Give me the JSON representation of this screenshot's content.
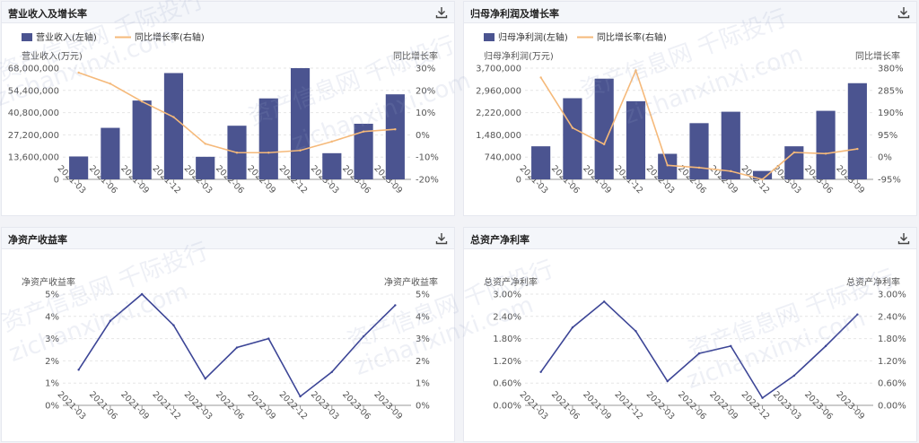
{
  "panels": [
    {
      "title": "营业收入及增长率",
      "chart_data": {
        "type": "bar",
        "categories": [
          "2021-03",
          "2021-06",
          "2021-09",
          "2021-12",
          "2022-03",
          "2022-06",
          "2022-09",
          "2022-12",
          "2023-03",
          "2023-06",
          "2023-09"
        ],
        "series": [
          {
            "name": "营业收入(左轴)",
            "type": "bar",
            "axis": "left",
            "values": [
              14000000,
              31500000,
              48200000,
              65000000,
              13800000,
              32800000,
              49500000,
              68000000,
              16000000,
              34000000,
              52000000
            ]
          },
          {
            "name": "同比增长率(右轴)",
            "type": "line",
            "axis": "right",
            "values": [
              28,
              23,
              15,
              8,
              -4,
              -8,
              -8,
              -7,
              -3,
              1.5,
              2.5
            ]
          }
        ],
        "left_axis": {
          "label": "营业收入(万元)",
          "ticks": [
            "68,000,000",
            "54,400,000",
            "40,800,000",
            "27,200,000",
            "13,600,000",
            "0"
          ],
          "ylim": [
            0,
            68000000
          ]
        },
        "right_axis": {
          "label": "同比增长率",
          "ticks": [
            "30%",
            "20%",
            "10%",
            "0%",
            "-10%",
            "-20%"
          ],
          "ylim": [
            -20,
            30
          ]
        },
        "legend": "top-left"
      }
    },
    {
      "title": "归母净利润及增长率",
      "chart_data": {
        "type": "bar",
        "categories": [
          "2021-03",
          "2021-06",
          "2021-09",
          "2021-12",
          "2022-03",
          "2022-06",
          "2022-09",
          "2022-12",
          "2023-03",
          "2023-06",
          "2023-09"
        ],
        "series": [
          {
            "name": "归母净利润(左轴)",
            "type": "bar",
            "axis": "left",
            "values": [
              1100000,
              2700000,
              3350000,
              2600000,
              850000,
              1870000,
              2250000,
              280000,
              1100000,
              2280000,
              3200000
            ]
          },
          {
            "name": "同比增长率(右轴)",
            "type": "line",
            "axis": "right",
            "values": [
              340,
              125,
              55,
              370,
              -35,
              -45,
              -60,
              -95,
              20,
              15,
              35
            ]
          }
        ],
        "left_axis": {
          "label": "归母净利润(万元)",
          "ticks": [
            "3,700,000",
            "2,960,000",
            "2,220,000",
            "1,480,000",
            "740,000",
            "0"
          ],
          "ylim": [
            0,
            3700000
          ]
        },
        "right_axis": {
          "label": "同比增长率",
          "ticks": [
            "380%",
            "285%",
            "190%",
            "95%",
            "0%",
            "-95%"
          ],
          "ylim": [
            -95,
            380
          ]
        },
        "legend": "top-left"
      }
    },
    {
      "title": "净资产收益率",
      "chart_data": {
        "type": "line",
        "categories": [
          "2021-03",
          "2021-06",
          "2021-09",
          "2021-12",
          "2022-03",
          "2022-06",
          "2022-09",
          "2022-12",
          "2023-03",
          "2023-06",
          "2023-09"
        ],
        "series": [
          {
            "values": [
              1.6,
              3.8,
              5.0,
              3.6,
              1.2,
              2.6,
              3.0,
              0.4,
              1.5,
              3.1,
              4.5
            ]
          }
        ],
        "left_axis": {
          "label": "净资产收益率",
          "ticks": [
            "5%",
            "4%",
            "3%",
            "2%",
            "1%",
            "0%"
          ],
          "ylim": [
            0,
            5
          ]
        },
        "right_axis": {
          "label": "净资产收益率",
          "ticks": [
            "5%",
            "4%",
            "3%",
            "2%",
            "1%",
            "0%"
          ],
          "ylim": [
            0,
            5
          ]
        }
      }
    },
    {
      "title": "总资产净利率",
      "chart_data": {
        "type": "line",
        "categories": [
          "2021-03",
          "2021-06",
          "2021-09",
          "2021-12",
          "2022-03",
          "2022-06",
          "2022-09",
          "2022-12",
          "2023-03",
          "2023-06",
          "2023-09"
        ],
        "series": [
          {
            "values": [
              0.9,
              2.1,
              2.8,
              2.0,
              0.65,
              1.4,
              1.6,
              0.2,
              0.8,
              1.6,
              2.45
            ]
          }
        ],
        "left_axis": {
          "label": "总资产净利率",
          "ticks": [
            "3.00%",
            "2.40%",
            "1.80%",
            "1.20%",
            "0.60%",
            "0.00%"
          ],
          "ylim": [
            0,
            3.0
          ]
        },
        "right_axis": {
          "label": "总资产净利率",
          "ticks": [
            "3.00%",
            "2.40%",
            "1.80%",
            "1.20%",
            "0.60%",
            "0.00%"
          ],
          "ylim": [
            0,
            3.0
          ]
        }
      }
    }
  ],
  "watermark": [
    "资产信息网 千际投行",
    "zichanxinxi.com"
  ],
  "colors": {
    "bar": "#4b5490",
    "line_yoy": "#f5b97a",
    "line_ratio": "#3c4596",
    "axis_text": "#555",
    "grid": "#e6e6e6"
  },
  "icons": {
    "download": "download-icon"
  }
}
